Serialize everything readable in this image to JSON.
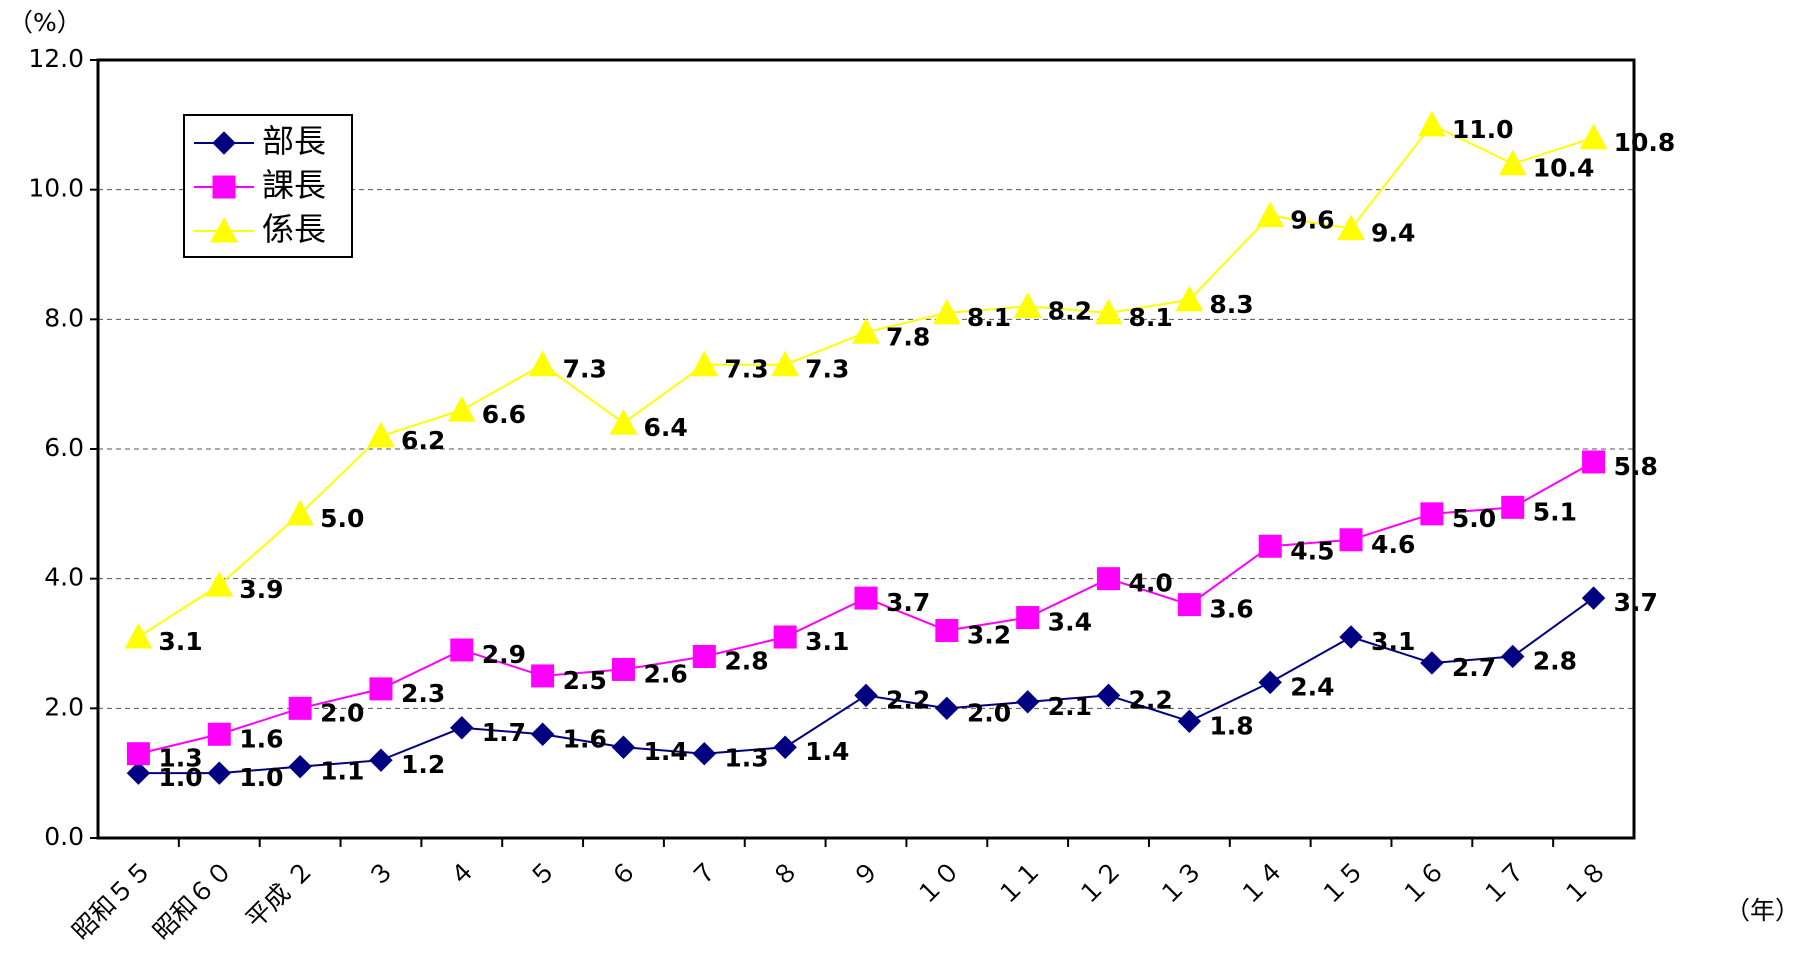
{
  "chart_data": {
    "type": "line",
    "y_unit": "（%）",
    "x_unit": "（年）",
    "categories": [
      "昭和５５",
      "昭和６０",
      "平成 ２",
      "３",
      "４",
      "５",
      "６",
      "７",
      "８",
      "９",
      "１０",
      "１１",
      "１２",
      "１３",
      "１４",
      "１５",
      "１６",
      "１７",
      "１８"
    ],
    "series": [
      {
        "name": "部長",
        "color": "#000080",
        "marker": "diamond",
        "values": [
          1.0,
          1.0,
          1.1,
          1.2,
          1.7,
          1.6,
          1.4,
          1.3,
          1.4,
          2.2,
          2.0,
          2.1,
          2.2,
          1.8,
          2.4,
          3.1,
          2.7,
          2.8,
          3.7
        ],
        "value_labels": [
          "1.0",
          "1.0",
          "1.1",
          "1.2",
          "1.7",
          "1.6",
          "1.4",
          "1.3",
          "1.4",
          "2.2",
          "2.0",
          "2.1",
          "2.2",
          "1.8",
          "2.4",
          "3.1",
          "2.7",
          "2.8",
          "3.7"
        ]
      },
      {
        "name": "課長",
        "color": "#ff00ff",
        "marker": "square",
        "values": [
          1.3,
          1.6,
          2.0,
          2.3,
          2.9,
          2.5,
          2.6,
          2.8,
          3.1,
          3.7,
          3.2,
          3.4,
          4.0,
          3.6,
          4.5,
          4.6,
          5.0,
          5.1,
          5.8
        ],
        "value_labels": [
          "1.3",
          "1.6",
          "2.0",
          "2.3",
          "2.9",
          "2.5",
          "2.6",
          "2.8",
          "3.1",
          "3.7",
          "3.2",
          "3.4",
          "4.0",
          "3.6",
          "4.5",
          "4.6",
          "5.0",
          "5.1",
          "5.8"
        ]
      },
      {
        "name": "係長",
        "color": "#ffff00",
        "marker": "triangle",
        "values": [
          3.1,
          3.9,
          5.0,
          6.2,
          6.6,
          7.3,
          6.4,
          7.3,
          7.3,
          7.8,
          8.1,
          8.2,
          8.1,
          8.3,
          9.6,
          9.4,
          11.0,
          10.4,
          10.8
        ],
        "value_labels": [
          "3.1",
          "3.9",
          "5.0",
          "6.2",
          "6.6",
          "7.3",
          "6.4",
          "7.3",
          "7.3",
          "7.8",
          "8.1",
          "8.2",
          "8.1",
          "8.3",
          "9.6",
          "9.4",
          "11.0",
          "10.4",
          "10.8"
        ]
      }
    ],
    "ylim": [
      0,
      12
    ],
    "yticks": [
      {
        "value": 0,
        "label": "0.0"
      },
      {
        "value": 2,
        "label": "2.0"
      },
      {
        "value": 4,
        "label": "4.0"
      },
      {
        "value": 6,
        "label": "6.0"
      },
      {
        "value": 8,
        "label": "8.0"
      },
      {
        "value": 10,
        "label": "10.0"
      },
      {
        "value": 12,
        "label": "12.0"
      }
    ],
    "grid": true,
    "legend": "upper left"
  }
}
